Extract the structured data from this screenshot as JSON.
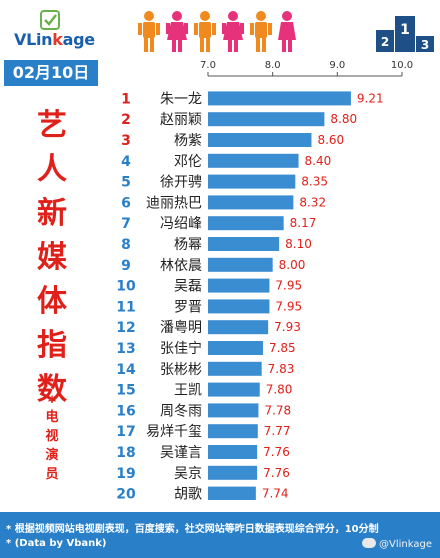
{
  "brand": {
    "prefix": "VLin",
    "accent": "k",
    "suffix": "age"
  },
  "date": "02月10日",
  "title_chars": [
    "艺",
    "人",
    "新",
    "媒",
    "体",
    "指",
    "数"
  ],
  "subtitle_star": "*",
  "subtitle_chars": [
    "电",
    "视",
    "演",
    "员"
  ],
  "footer": {
    "line1": "* 根据视频网站电视剧表现，百度搜索，社交网站等昨日数据表现综合评分，10分制",
    "line2": "* (Data by Vbank)",
    "weibo_handle": "@Vlinkage"
  },
  "colors": {
    "bar": "#3a8dd0",
    "rank_top3": "#e0201a",
    "rank_other": "#2a80c8",
    "value": "#e0201a",
    "accent": "#2a80c8"
  },
  "chart_data": {
    "type": "bar",
    "orientation": "horizontal",
    "xlim": [
      7.0,
      10.0
    ],
    "x_ticks": [
      "7.0",
      "8.0",
      "9.0",
      "10.0"
    ],
    "ranks": [
      "1",
      "2",
      "3",
      "4",
      "5",
      "6",
      "7",
      "8",
      "9",
      "10",
      "11",
      "12",
      "13",
      "14",
      "15",
      "16",
      "17",
      "18",
      "19",
      "20"
    ],
    "categories": [
      "朱一龙",
      "赵丽颖",
      "杨紫",
      "邓伦",
      "徐开骋",
      "迪丽热巴",
      "冯绍峰",
      "杨幂",
      "林依晨",
      "吴磊",
      "罗晋",
      "潘粤明",
      "张佳宁",
      "张彬彬",
      "王凯",
      "周冬雨",
      "易烊千玺",
      "吴谨言",
      "吴京",
      "胡歌"
    ],
    "values": [
      9.21,
      8.8,
      8.6,
      8.4,
      8.35,
      8.32,
      8.17,
      8.1,
      8.0,
      7.95,
      7.95,
      7.93,
      7.85,
      7.83,
      7.8,
      7.78,
      7.77,
      7.76,
      7.76,
      7.74
    ],
    "value_labels": [
      "9.21",
      "8.80",
      "8.60",
      "8.40",
      "8.35",
      "8.32",
      "8.17",
      "8.10",
      "8.00",
      "7.95",
      "7.95",
      "7.93",
      "7.85",
      "7.83",
      "7.80",
      "7.78",
      "7.77",
      "7.76",
      "7.76",
      "7.74"
    ],
    "grid": false
  }
}
